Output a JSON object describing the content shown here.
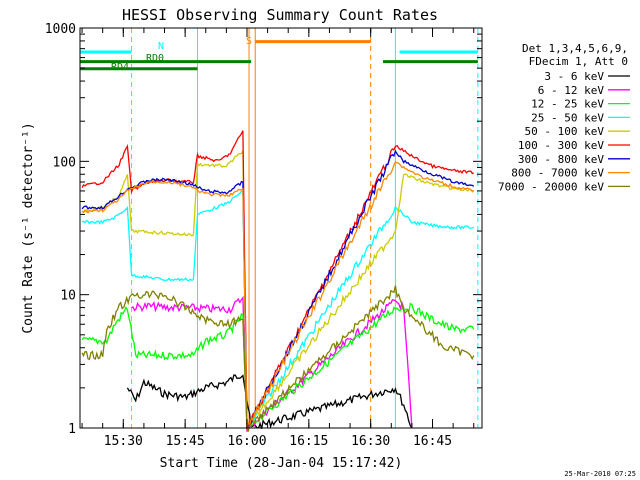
{
  "chart_data": {
    "type": "line",
    "title": "HESSI Observing Summary Count Rates",
    "xlabel": "Start Time (28-Jan-04 15:17:42)",
    "ylabel": "Count Rate (s⁻¹ detector⁻¹)",
    "y_scale": "log",
    "ylim": [
      1,
      1000
    ],
    "xlim": [
      "15:19:30",
      "16:57:00"
    ],
    "x_ticks": [
      "15:30",
      "15:45",
      "16:00",
      "16:15",
      "16:30",
      "16:45"
    ],
    "y_ticks": [
      "1",
      "10",
      "100",
      "1000"
    ],
    "legend_position": "right",
    "legend_header": [
      "Det 1,3,4,5,6,9,",
      "FDecim 1, Att 0"
    ],
    "timestamp": "25-Mar-2010 07:25",
    "series": [
      {
        "name": "3 - 6 keV",
        "color": "#000000",
        "points": [
          [
            "15:31",
            2.0
          ],
          [
            "15:33",
            1.6
          ],
          [
            "15:35",
            2.2
          ],
          [
            "15:40",
            1.8
          ],
          [
            "15:45",
            1.7
          ],
          [
            "15:50",
            2.0
          ],
          [
            "15:55",
            2.2
          ],
          [
            "15:59",
            2.6
          ],
          [
            "16:01",
            1.0
          ],
          [
            "16:36",
            2.0
          ],
          [
            "16:38",
            1.5
          ],
          [
            "16:40",
            1.0
          ]
        ]
      },
      {
        "name": "6 - 12 keV",
        "color": "#ff00ff",
        "points": [
          [
            "15:32",
            8.0
          ],
          [
            "15:36",
            8.2
          ],
          [
            "15:41",
            8.0
          ],
          [
            "15:46",
            8.0
          ],
          [
            "15:51",
            7.8
          ],
          [
            "15:56",
            7.8
          ],
          [
            "15:59",
            9.5
          ],
          [
            "16:00",
            1.0
          ],
          [
            "16:36",
            9.0
          ],
          [
            "16:38",
            8.0
          ],
          [
            "16:39",
            3.0
          ],
          [
            "16:40",
            1.0
          ]
        ]
      },
      {
        "name": "12 - 25 keV",
        "color": "#00ff00",
        "points": [
          [
            "15:20",
            4.5
          ],
          [
            "15:26",
            4.5
          ],
          [
            "15:28",
            6.0
          ],
          [
            "15:31",
            8.0
          ],
          [
            "15:33",
            3.5
          ],
          [
            "15:40",
            3.5
          ],
          [
            "15:47",
            3.5
          ],
          [
            "15:50",
            4.5
          ],
          [
            "15:55",
            5.0
          ],
          [
            "15:59",
            7.0
          ],
          [
            "16:00",
            1.0
          ],
          [
            "16:36",
            8.0
          ],
          [
            "16:40",
            8.0
          ],
          [
            "16:45",
            6.5
          ],
          [
            "16:50",
            5.5
          ],
          [
            "16:55",
            5.5
          ]
        ]
      },
      {
        "name": "25 - 50 keV",
        "color": "#00ffff",
        "points": [
          [
            "15:20",
            35
          ],
          [
            "15:25",
            35
          ],
          [
            "15:28",
            38
          ],
          [
            "15:31",
            45
          ],
          [
            "15:32",
            14
          ],
          [
            "15:40",
            13
          ],
          [
            "15:47",
            13
          ],
          [
            "15:48",
            40
          ],
          [
            "15:55",
            48
          ],
          [
            "15:59",
            60
          ],
          [
            "16:00",
            1.0
          ],
          [
            "16:36",
            45
          ],
          [
            "16:38",
            40
          ],
          [
            "16:40",
            35
          ],
          [
            "16:45",
            33
          ],
          [
            "16:50",
            32
          ],
          [
            "16:55",
            32
          ]
        ]
      },
      {
        "name": "50 - 100 keV",
        "color": "#cccc00",
        "points": [
          [
            "15:20",
            42
          ],
          [
            "15:25",
            45
          ],
          [
            "15:29",
            55
          ],
          [
            "15:31",
            80
          ],
          [
            "15:32",
            30
          ],
          [
            "15:40",
            29
          ],
          [
            "15:47",
            28
          ],
          [
            "15:48",
            95
          ],
          [
            "15:55",
            92
          ],
          [
            "15:59",
            120
          ],
          [
            "16:00",
            1.0
          ],
          [
            "16:36",
            30
          ],
          [
            "16:38",
            80
          ],
          [
            "16:43",
            70
          ],
          [
            "16:50",
            62
          ],
          [
            "16:55",
            60
          ]
        ]
      },
      {
        "name": "100 - 300 keV",
        "color": "#ff0000",
        "points": [
          [
            "15:20",
            65
          ],
          [
            "15:25",
            70
          ],
          [
            "15:29",
            95
          ],
          [
            "15:31",
            130
          ],
          [
            "15:32",
            60
          ],
          [
            "15:36",
            70
          ],
          [
            "15:41",
            72
          ],
          [
            "15:46",
            70
          ],
          [
            "15:47",
            70
          ],
          [
            "15:48",
            110
          ],
          [
            "15:53",
            100
          ],
          [
            "15:56",
            115
          ],
          [
            "15:59",
            170
          ],
          [
            "16:00",
            1.0
          ],
          [
            "16:36",
            130
          ],
          [
            "16:38",
            120
          ],
          [
            "16:41",
            105
          ],
          [
            "16:45",
            92
          ],
          [
            "16:50",
            85
          ],
          [
            "16:55",
            82
          ]
        ]
      },
      {
        "name": "300 - 800 keV",
        "color": "#0000cc",
        "points": [
          [
            "15:20",
            45
          ],
          [
            "15:25",
            45
          ],
          [
            "15:29",
            55
          ],
          [
            "15:31",
            62
          ],
          [
            "15:36",
            72
          ],
          [
            "15:41",
            73
          ],
          [
            "15:46",
            68
          ],
          [
            "15:50",
            60
          ],
          [
            "15:55",
            58
          ],
          [
            "15:59",
            70
          ],
          [
            "16:00",
            1.0
          ],
          [
            "16:36",
            120
          ],
          [
            "16:38",
            100
          ],
          [
            "16:43",
            85
          ],
          [
            "16:50",
            70
          ],
          [
            "16:55",
            65
          ]
        ]
      },
      {
        "name": "800 - 7000 keV",
        "color": "#ff8800",
        "points": [
          [
            "15:20",
            42
          ],
          [
            "15:25",
            43
          ],
          [
            "15:29",
            52
          ],
          [
            "15:31",
            60
          ],
          [
            "15:36",
            70
          ],
          [
            "15:41",
            70
          ],
          [
            "15:46",
            65
          ],
          [
            "15:50",
            57
          ],
          [
            "15:55",
            55
          ],
          [
            "15:59",
            62
          ],
          [
            "16:00",
            1.0
          ],
          [
            "16:36",
            100
          ],
          [
            "16:38",
            90
          ],
          [
            "16:43",
            75
          ],
          [
            "16:50",
            65
          ],
          [
            "16:55",
            60
          ]
        ]
      },
      {
        "name": "7000 - 20000 keV",
        "color": "#808000",
        "points": [
          [
            "15:20",
            3.5
          ],
          [
            "15:25",
            3.5
          ],
          [
            "15:26",
            5.5
          ],
          [
            "15:29",
            8.0
          ],
          [
            "15:33",
            10.0
          ],
          [
            "15:40",
            10.0
          ],
          [
            "15:45",
            8.0
          ],
          [
            "15:50",
            6.5
          ],
          [
            "15:55",
            6.0
          ],
          [
            "15:59",
            6.5
          ],
          [
            "16:00",
            1.0
          ],
          [
            "16:36",
            11.0
          ],
          [
            "16:38",
            8.0
          ],
          [
            "16:42",
            6.0
          ],
          [
            "16:48",
            4.0
          ],
          [
            "16:55",
            3.5
          ]
        ]
      }
    ],
    "flags": [
      {
        "label": "N",
        "color": "#00ffff",
        "level": 660,
        "segments": [
          [
            "15:19:30",
            "15:32:00"
          ],
          [
            "16:37:00",
            "16:56:00"
          ]
        ]
      },
      {
        "label": "RD0",
        "color": "#008000",
        "level": 560,
        "segments": [
          [
            "15:19:30",
            "16:01:00"
          ],
          [
            "16:33:00",
            "16:56:00"
          ]
        ]
      },
      {
        "label": "RD4",
        "color": "#008000",
        "level": 495,
        "segments": [
          [
            "15:19:30",
            "15:48:00"
          ]
        ]
      },
      {
        "label": "S",
        "color": "#ff8000",
        "level": 790,
        "segments": [
          [
            "16:02:00",
            "16:30:00"
          ]
        ]
      }
    ],
    "markers": [
      {
        "time": "15:19:30",
        "color": "#00ffff",
        "style": "solid"
      },
      {
        "time": "15:32:00",
        "color": "#00ffff",
        "style": "dashed"
      },
      {
        "time": "15:48:00",
        "color": "#00ffff",
        "style": "solid"
      },
      {
        "time": "16:00:30",
        "color": "#ff8000",
        "style": "solid"
      },
      {
        "time": "16:02:00",
        "color": "#ff8000",
        "style": "solid"
      },
      {
        "time": "16:30:00",
        "color": "#ff8000",
        "style": "dashed"
      },
      {
        "time": "16:36:00",
        "color": "#00ffff",
        "style": "solid"
      },
      {
        "time": "16:56:00",
        "color": "#00ffff",
        "style": "dashed"
      }
    ]
  }
}
